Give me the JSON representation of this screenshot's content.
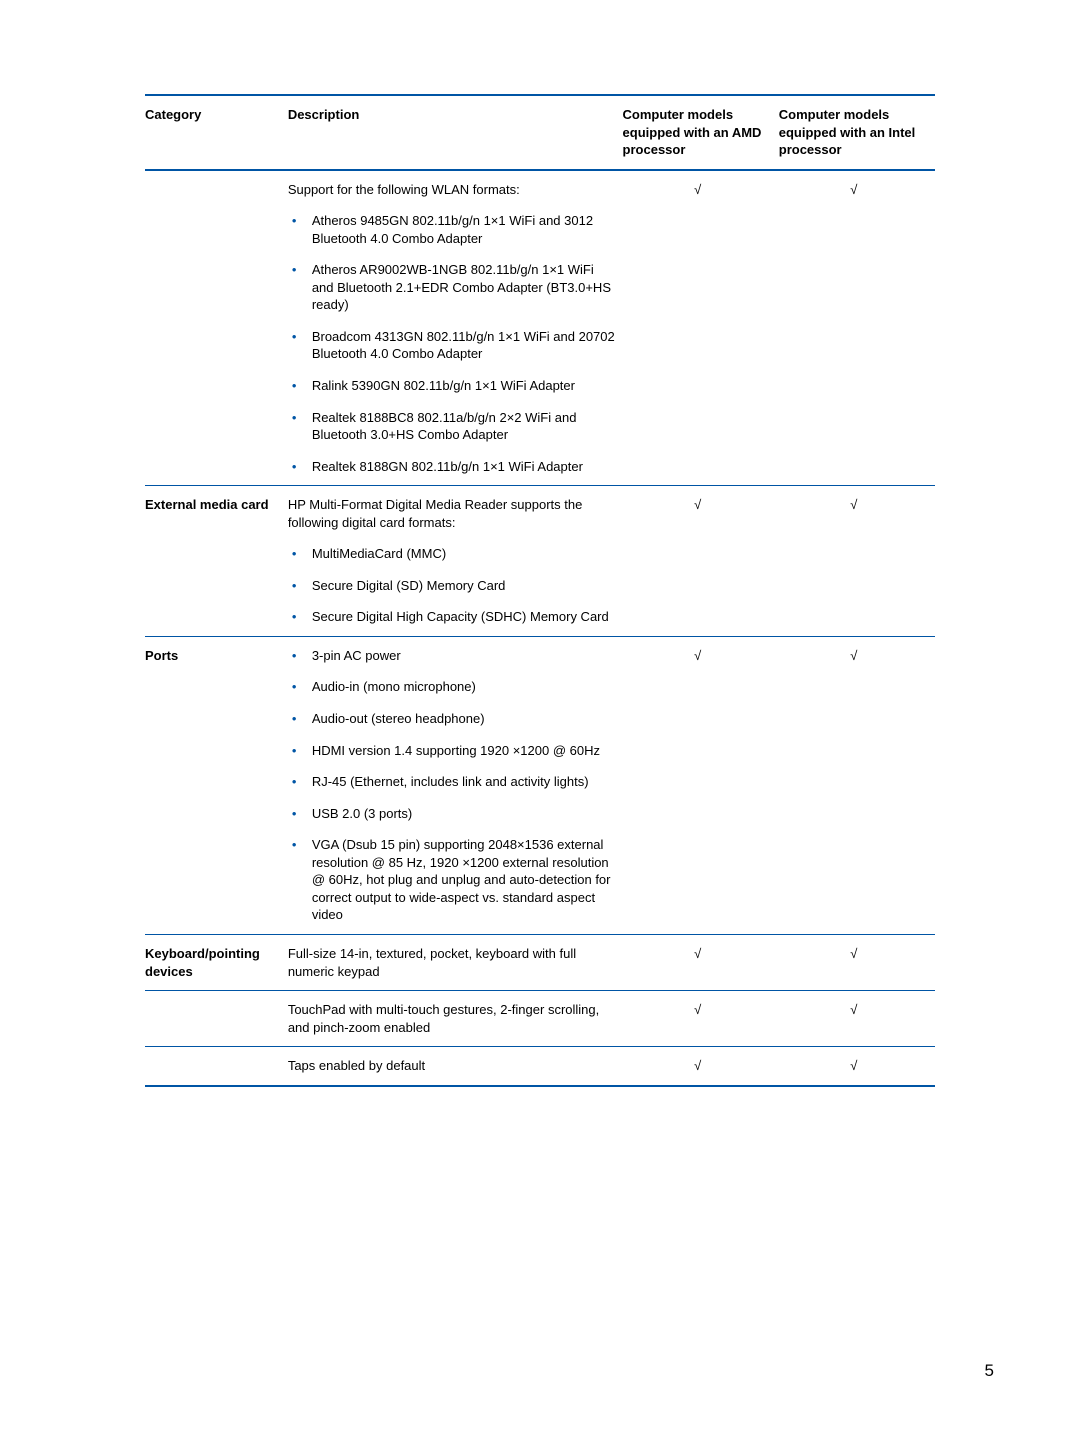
{
  "header": {
    "category": "Category",
    "description": "Description",
    "amd": "Computer models equipped with an AMD processor",
    "intel": "Computer models equipped with an Intel processor"
  },
  "rows": [
    {
      "category": "",
      "lead": "Support for the following WLAN formats:",
      "bullets": [
        "Atheros 9485GN 802.11b/g/n 1×1 WiFi and 3012 Bluetooth 4.0 Combo Adapter",
        "Atheros AR9002WB-1NGB 802.11b/g/n 1×1 WiFi and Bluetooth 2.1+EDR Combo Adapter (BT3.0+HS ready)",
        "Broadcom 4313GN 802.11b/g/n 1×1 WiFi and 20702 Bluetooth 4.0 Combo Adapter",
        "Ralink 5390GN 802.11b/g/n 1×1 WiFi Adapter",
        "Realtek 8188BC8  802.11a/b/g/n 2×2 WiFi and Bluetooth 3.0+HS Combo Adapter",
        "Realtek 8188GN 802.11b/g/n 1×1 WiFi Adapter"
      ],
      "amd": "√",
      "intel": "√"
    },
    {
      "category": "External media card",
      "lead": "HP Multi-Format Digital Media Reader supports the following digital card formats:",
      "bullets": [
        "MultiMediaCard (MMC)",
        "Secure Digital (SD) Memory Card",
        "Secure Digital High Capacity (SDHC) Memory Card"
      ],
      "amd": "√",
      "intel": "√"
    },
    {
      "category": "Ports",
      "lead": "",
      "bullets": [
        "3-pin AC power",
        "Audio-in (mono microphone)",
        "Audio-out (stereo headphone)",
        "HDMI version 1.4 supporting 1920 ×1200 @ 60Hz",
        "RJ-45 (Ethernet, includes link and activity lights)",
        "USB 2.0 (3 ports)",
        "VGA (Dsub 15 pin) supporting 2048×1536 external resolution @ 85 Hz, 1920 ×1200 external resolution @ 60Hz, hot plug and unplug and auto-detection for correct output to wide-aspect vs. standard aspect video"
      ],
      "amd": "√",
      "intel": "√"
    },
    {
      "category": "Keyboard/pointing devices",
      "lead": "Full-size 14-in, textured, pocket, keyboard with full numeric keypad",
      "bullets": [],
      "amd": "√",
      "intel": "√"
    },
    {
      "category": "",
      "lead": "TouchPad with multi-touch gestures, 2-finger scrolling, and pinch-zoom enabled",
      "bullets": [],
      "amd": "√",
      "intel": "√"
    },
    {
      "category": "",
      "lead": "Taps enabled by default",
      "bullets": [],
      "amd": "√",
      "intel": "√"
    }
  ],
  "pageNumber": "5",
  "colors": {
    "rule": "#0055a5",
    "bullet": "#0055a5",
    "text": "#000000",
    "bg": "#ffffff"
  }
}
